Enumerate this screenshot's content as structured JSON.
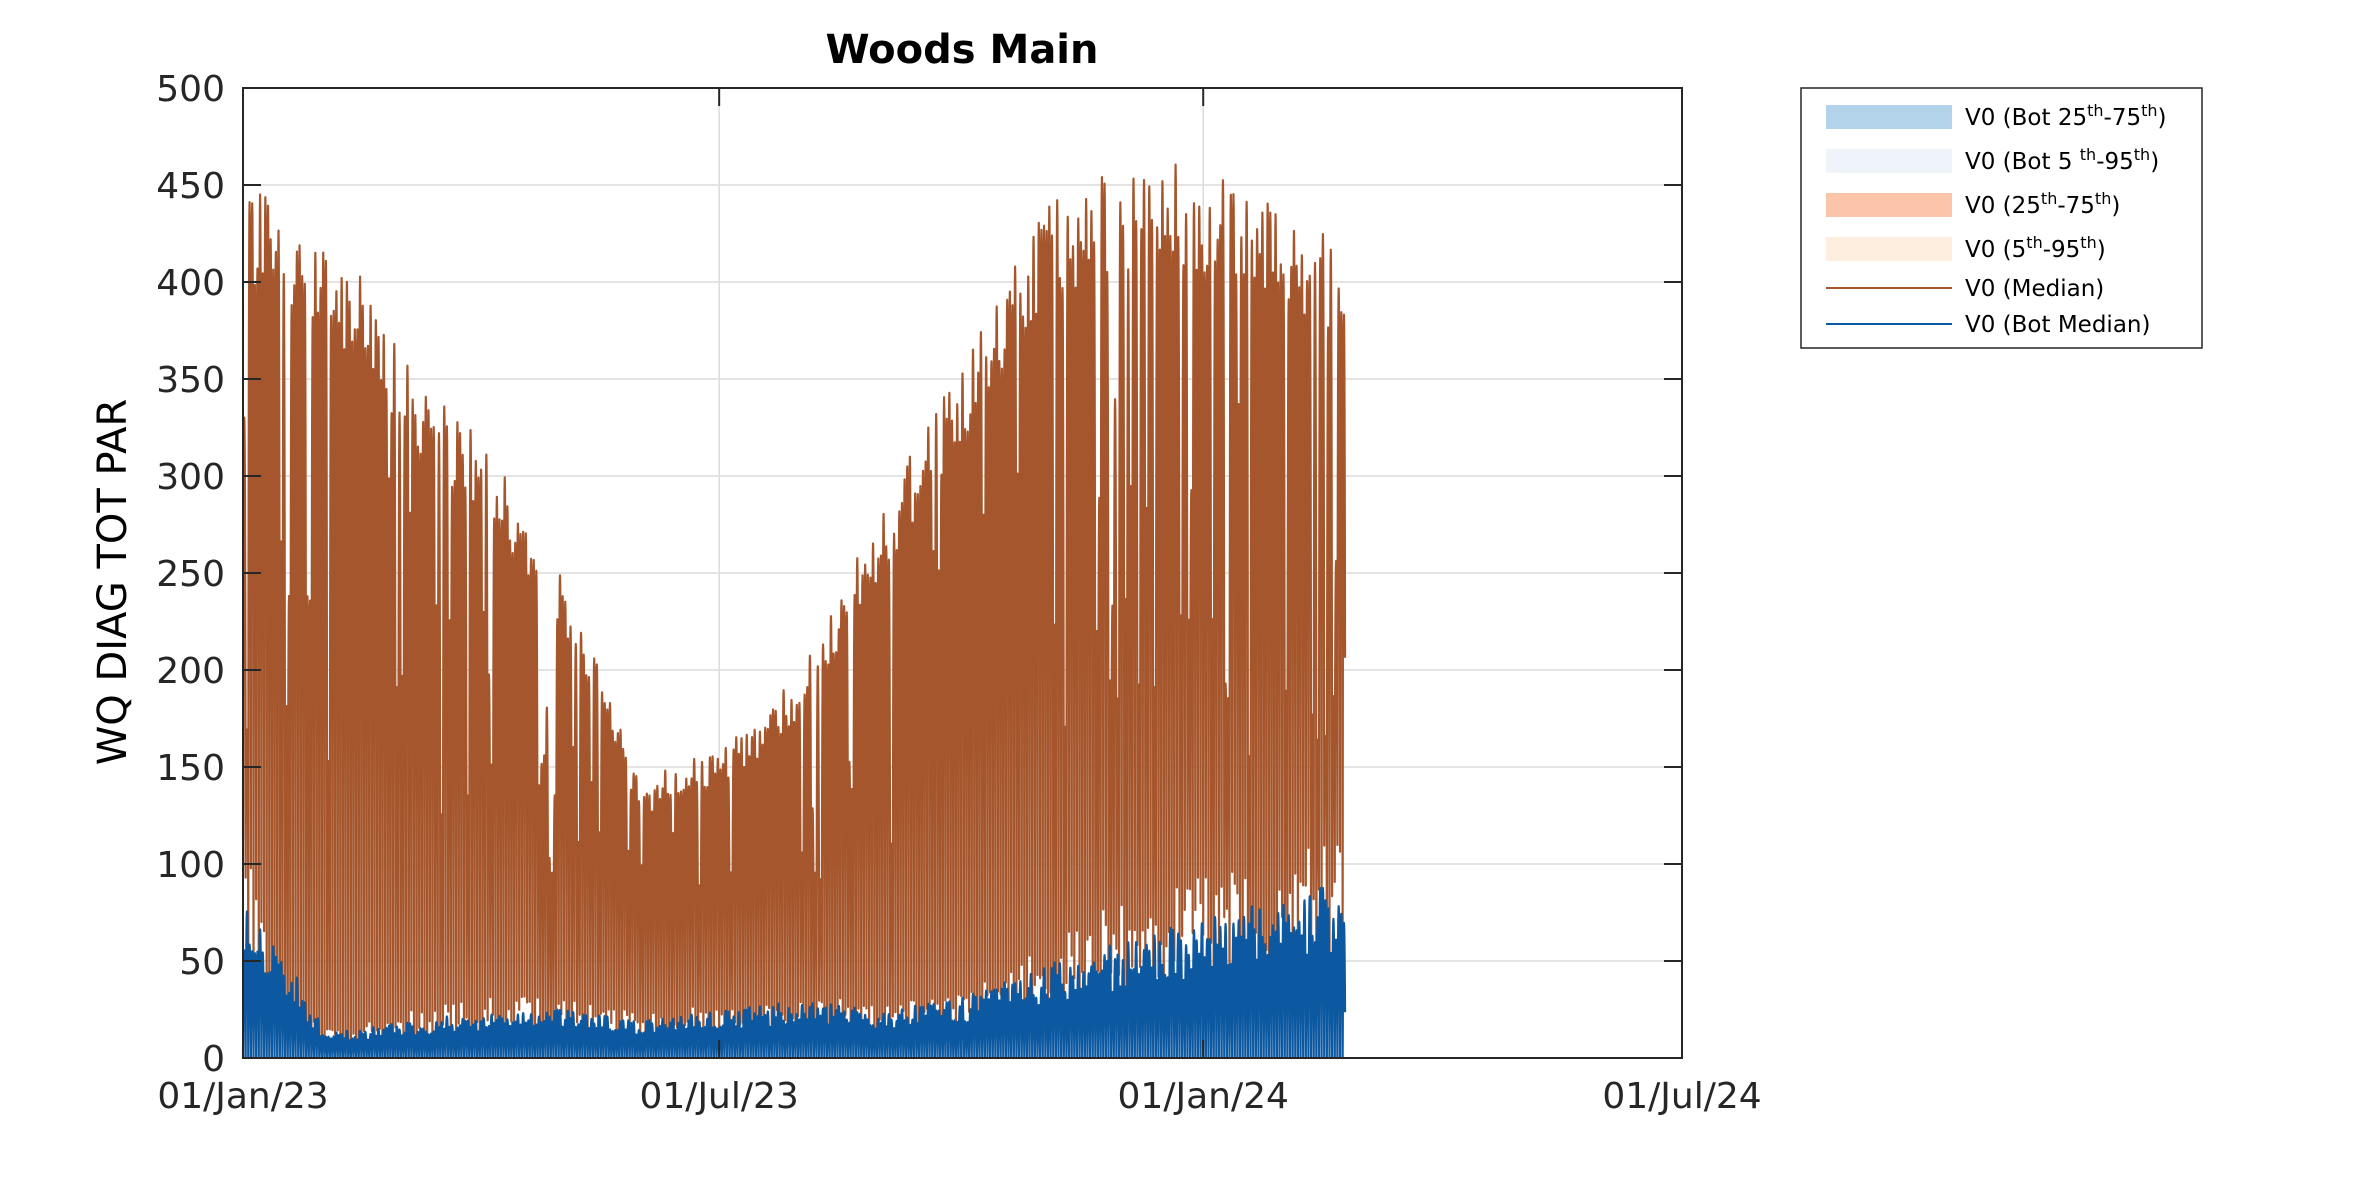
{
  "chart_data": {
    "type": "area",
    "title": "Woods Main",
    "xlabel": "",
    "ylabel": "WQ DIAG TOT PAR",
    "xlim": [
      "2023-01-01",
      "2024-07-01"
    ],
    "ylim": [
      0,
      500
    ],
    "x_ticks": [
      "01/Jan/23",
      "01/Jul/23",
      "01/Jan/24",
      "01/Jul/24"
    ],
    "y_ticks": [
      0,
      50,
      100,
      150,
      200,
      250,
      300,
      350,
      400,
      450,
      500
    ],
    "grid": true,
    "legend_position": "outside-right-top",
    "legend": [
      {
        "base": "V0 (Bot 25",
        "sup1": "th",
        "mid": "-75",
        "sup2": "th",
        "end": ")",
        "kind": "patch",
        "color": "#b3d3ea"
      },
      {
        "base": "V0 (Bot 5 ",
        "sup1": "th",
        "mid": "-95",
        "sup2": "th",
        "end": ")",
        "kind": "patch",
        "color": "#eef4f9"
      },
      {
        "base": "V0 (25",
        "sup1": "th",
        "mid": "-75",
        "sup2": "th",
        "end": ")",
        "kind": "patch",
        "color": "#fcc4a9"
      },
      {
        "base": "V0 (5",
        "sup1": "th",
        "mid": "-95",
        "sup2": "th",
        "end": ")",
        "kind": "patch",
        "color": "#fdeee0"
      },
      {
        "base": "V0 (Median)",
        "sup1": "",
        "mid": "",
        "sup2": "",
        "end": "",
        "kind": "line",
        "color": "#a5562c"
      },
      {
        "base": "V0 (Bot Median)",
        "sup1": "",
        "mid": "",
        "sup2": "",
        "end": "",
        "kind": "line",
        "color": "#0c58a1"
      }
    ],
    "series": [
      {
        "name": "V0 (Median)",
        "color": "#a5562c",
        "dates": [
          "2023-01-01",
          "2023-01-15",
          "2023-02-01",
          "2023-02-15",
          "2023-03-01",
          "2023-03-15",
          "2023-04-01",
          "2023-04-15",
          "2023-05-01",
          "2023-05-15",
          "2023-06-01",
          "2023-06-15",
          "2023-07-01",
          "2023-07-15",
          "2023-08-01",
          "2023-08-15",
          "2023-09-01",
          "2023-09-15",
          "2023-10-01",
          "2023-10-15",
          "2023-11-01",
          "2023-11-15",
          "2023-12-01",
          "2023-12-15",
          "2024-01-01",
          "2024-01-15",
          "2024-02-01",
          "2024-02-15"
        ],
        "daily_max_envelope": [
          455,
          440,
          425,
          405,
          370,
          340,
          320,
          290,
          250,
          205,
          140,
          155,
          160,
          175,
          200,
          240,
          285,
          320,
          360,
          400,
          440,
          450,
          460,
          465,
          460,
          445,
          440,
          425
        ],
        "nightly_min_envelope": [
          90,
          25,
          12,
          15,
          18,
          22,
          24,
          25,
          24,
          22,
          18,
          20,
          22,
          24,
          26,
          24,
          22,
          24,
          28,
          35,
          45,
          55,
          62,
          68,
          72,
          78,
          84,
          88
        ]
      },
      {
        "name": "V0 (Bot Median)",
        "color": "#0c58a1",
        "dates": [
          "2023-01-01",
          "2023-01-15",
          "2023-02-01",
          "2023-02-15",
          "2023-03-01",
          "2023-03-15",
          "2023-04-01",
          "2023-04-15",
          "2023-05-01",
          "2023-05-15",
          "2023-06-01",
          "2023-06-15",
          "2023-07-01",
          "2023-07-15",
          "2023-08-01",
          "2023-08-15",
          "2023-09-01",
          "2023-09-15",
          "2023-10-01",
          "2023-10-15",
          "2023-11-01",
          "2023-11-15",
          "2023-12-01",
          "2023-12-15",
          "2024-01-01",
          "2024-01-15",
          "2024-02-01",
          "2024-02-15"
        ],
        "daily_max_envelope": [
          90,
          55,
          12,
          15,
          18,
          20,
          22,
          24,
          24,
          22,
          18,
          22,
          24,
          26,
          28,
          26,
          24,
          26,
          30,
          36,
          45,
          52,
          58,
          64,
          68,
          74,
          80,
          86
        ]
      }
    ]
  }
}
